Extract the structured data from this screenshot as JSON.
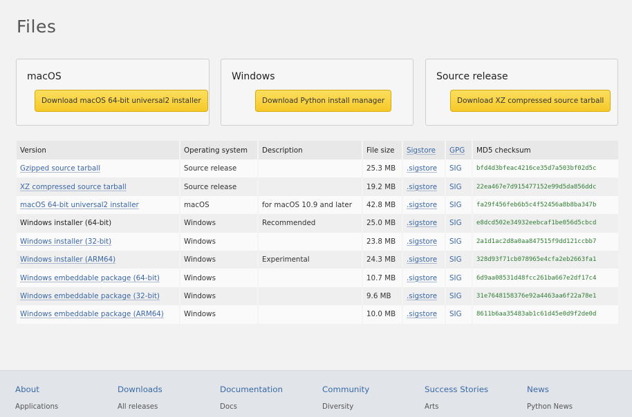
{
  "page_title": "Files",
  "cards": [
    {
      "title": "macOS",
      "button": "Download macOS 64-bit universal2 installer"
    },
    {
      "title": "Windows",
      "button": "Download Python install manager"
    },
    {
      "title": "Source release",
      "button": "Download XZ compressed source tarball"
    }
  ],
  "table": {
    "headers": [
      "Version",
      "Operating system",
      "Description",
      "File size",
      "Sigstore",
      "GPG",
      "MD5 checksum"
    ],
    "rows": [
      {
        "version": "Gzipped source tarball",
        "os": "Source release",
        "desc": "",
        "size": "25.3 MB",
        "sigstore": ".sigstore",
        "gpg": "SIG",
        "md5": "bfd4d3bfeac4216ce35d7a503bf02d5c"
      },
      {
        "version": "XZ compressed source tarball",
        "os": "Source release",
        "desc": "",
        "size": "19.2 MB",
        "sigstore": ".sigstore",
        "gpg": "SIG",
        "md5": "22ea467e7d915477152e99d5da856ddc"
      },
      {
        "version": "macOS 64-bit universal2 installer",
        "os": "macOS",
        "desc": "for macOS 10.9 and later",
        "size": "42.8 MB",
        "sigstore": ".sigstore",
        "gpg": "SIG",
        "md5": "fa29f456feb6b5c4f52456a8b8ba347b"
      },
      {
        "version": "Windows installer (64-bit)",
        "os": "Windows",
        "desc": "Recommended",
        "size": "25.0 MB",
        "sigstore": ".sigstore",
        "gpg": "SIG",
        "md5": "e8dcd502e34932eebcaf1be056d5cbcd"
      },
      {
        "version": "Windows installer (32-bit)",
        "os": "Windows",
        "desc": "",
        "size": "23.8 MB",
        "sigstore": ".sigstore",
        "gpg": "SIG",
        "md5": "2a1d1ac2d8a0aa847515f9dd121ccbb7"
      },
      {
        "version": "Windows installer (ARM64)",
        "os": "Windows",
        "desc": "Experimental",
        "size": "24.3 MB",
        "sigstore": ".sigstore",
        "gpg": "SIG",
        "md5": "328d93f71cb078965e4cfa2eb2663fa1"
      },
      {
        "version": "Windows embeddable package (64-bit)",
        "os": "Windows",
        "desc": "",
        "size": "10.7 MB",
        "sigstore": ".sigstore",
        "gpg": "SIG",
        "md5": "6d9aa08531d48fcc261ba667e2df17c4"
      },
      {
        "version": "Windows embeddable package (32-bit)",
        "os": "Windows",
        "desc": "",
        "size": "9.6 MB",
        "sigstore": ".sigstore",
        "gpg": "SIG",
        "md5": "31e7648158376e92a4463aa6f22a78e1"
      },
      {
        "version": "Windows embeddable package (ARM64)",
        "os": "Windows",
        "desc": "",
        "size": "10.0 MB",
        "sigstore": ".sigstore",
        "gpg": "SIG",
        "md5": "8611b6aa35483ab1c61d45e0d9f2de0d"
      }
    ]
  },
  "footer": [
    {
      "heading": "About",
      "item": "Applications"
    },
    {
      "heading": "Downloads",
      "item": "All releases"
    },
    {
      "heading": "Documentation",
      "item": "Docs"
    },
    {
      "heading": "Community",
      "item": "Diversity"
    },
    {
      "heading": "Success Stories",
      "item": "Arts"
    },
    {
      "heading": "News",
      "item": "Python News"
    }
  ],
  "colors": {
    "link": "#3a67a6",
    "checksum": "#2e7d32",
    "button": "#f6c928"
  }
}
